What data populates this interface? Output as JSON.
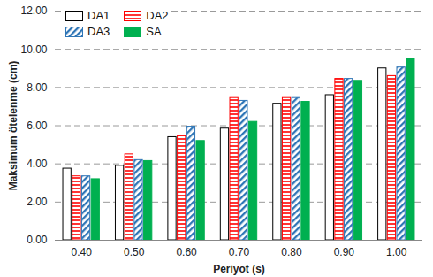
{
  "chart_data": {
    "type": "bar",
    "x_label": "Periyot (s)",
    "y_label": "Maksimum ötelenme (cm)",
    "categories": [
      "0.40",
      "0.50",
      "0.60",
      "0.70",
      "0.80",
      "0.90",
      "1.00"
    ],
    "series": [
      {
        "name": "DA1",
        "color": "#000000",
        "values": [
          3.75,
          3.9,
          5.4,
          5.85,
          7.15,
          7.6,
          9.0
        ]
      },
      {
        "name": "DA2",
        "color": "#ff0000",
        "values": [
          3.35,
          4.5,
          5.45,
          7.45,
          7.45,
          8.45,
          8.6
        ]
      },
      {
        "name": "DA3",
        "color": "#2e75b6",
        "values": [
          3.35,
          4.2,
          5.95,
          7.3,
          7.45,
          8.45,
          9.05
        ]
      },
      {
        "name": "SA",
        "color": "#00b050",
        "values": [
          3.2,
          4.15,
          5.2,
          6.2,
          7.25,
          8.35,
          9.5
        ]
      }
    ],
    "ylim": [
      0,
      12
    ],
    "yticks": [
      {
        "value": 0,
        "label": "0.00"
      },
      {
        "value": 2,
        "label": "2.00"
      },
      {
        "value": 4,
        "label": "4.00"
      },
      {
        "value": 6,
        "label": "6.00"
      },
      {
        "value": 8,
        "label": "8.00"
      },
      {
        "value": 10,
        "label": "10.00"
      },
      {
        "value": 12,
        "label": "12.00"
      }
    ],
    "grid": true,
    "legend": "top-left"
  }
}
